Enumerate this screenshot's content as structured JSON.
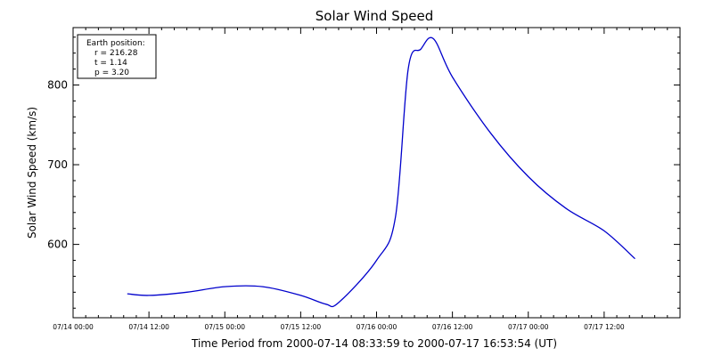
{
  "chart_data": {
    "type": "line",
    "title": "Solar Wind Speed",
    "xlabel": "Time Period from 2000-07-14 08:33:59 to 2000-07-17 16:53:54 (UT)",
    "ylabel": "Solar Wind Speed (km/s)",
    "xlim": [
      "2000-07-14 00:00",
      "2000-07-18 00:00"
    ],
    "ylim": [
      508,
      872
    ],
    "y_ticks": [
      600,
      700,
      800
    ],
    "x_tick_labels": [
      "07/14 00:00",
      "07/14 12:00",
      "07/15 00:00",
      "07/15 12:00",
      "07/16 00:00",
      "07/16 12:00",
      "07/17 00:00",
      "07/17 12:00"
    ],
    "grid": false,
    "line_color": "#0000cc",
    "series": [
      {
        "x": [
          "2000-07-14 08:34",
          "2000-07-14 12:00",
          "2000-07-14 18:00",
          "2000-07-15 00:00",
          "2000-07-15 06:00",
          "2000-07-15 12:00",
          "2000-07-15 16:00",
          "2000-07-15 18:00",
          "2000-07-16 00:00",
          "2000-07-16 03:00",
          "2000-07-16 05:00",
          "2000-07-16 07:00",
          "2000-07-16 09:00",
          "2000-07-16 12:00",
          "2000-07-16 18:00",
          "2000-07-17 00:00",
          "2000-07-17 06:00",
          "2000-07-17 12:00",
          "2000-07-17 16:53"
        ],
        "y": [
          538,
          536,
          540,
          547,
          547,
          536,
          525,
          527,
          580,
          635,
          820,
          845,
          858,
          810,
          740,
          685,
          645,
          617,
          582
        ]
      }
    ]
  },
  "legend": {
    "title": "Earth position:",
    "lines": [
      "r = 216.28",
      "t = 1.14",
      "p = 3.20"
    ]
  }
}
